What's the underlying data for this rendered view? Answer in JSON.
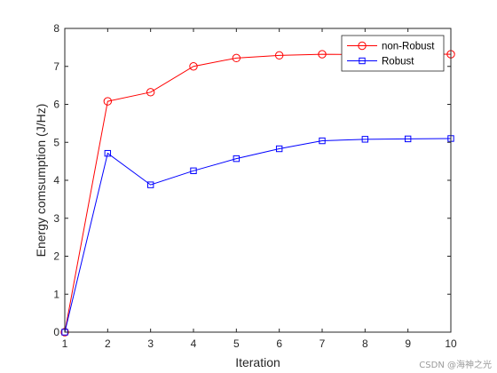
{
  "chart_data": {
    "type": "line",
    "title": "",
    "xlabel": "Iteration",
    "ylabel": "Energy comsumption (J/Hz)",
    "xlim": [
      1,
      10
    ],
    "ylim": [
      0,
      8
    ],
    "xticks": [
      1,
      2,
      3,
      4,
      5,
      6,
      7,
      8,
      9,
      10
    ],
    "yticks": [
      0,
      1,
      2,
      3,
      4,
      5,
      6,
      7,
      8
    ],
    "grid": false,
    "legend_position": "top-right",
    "x": [
      1,
      2,
      3,
      4,
      5,
      6,
      7,
      8,
      9,
      10
    ],
    "series": [
      {
        "name": "non-Robust",
        "color": "#ff0000",
        "marker": "circle",
        "values": [
          0,
          6.08,
          6.32,
          7.0,
          7.22,
          7.29,
          7.32,
          7.31,
          7.33,
          7.32
        ]
      },
      {
        "name": "Robust",
        "color": "#0000ff",
        "marker": "square",
        "values": [
          0,
          4.71,
          3.88,
          4.25,
          4.57,
          4.83,
          5.04,
          5.08,
          5.09,
          5.1
        ]
      }
    ]
  },
  "watermark": "CSDN @海神之光"
}
